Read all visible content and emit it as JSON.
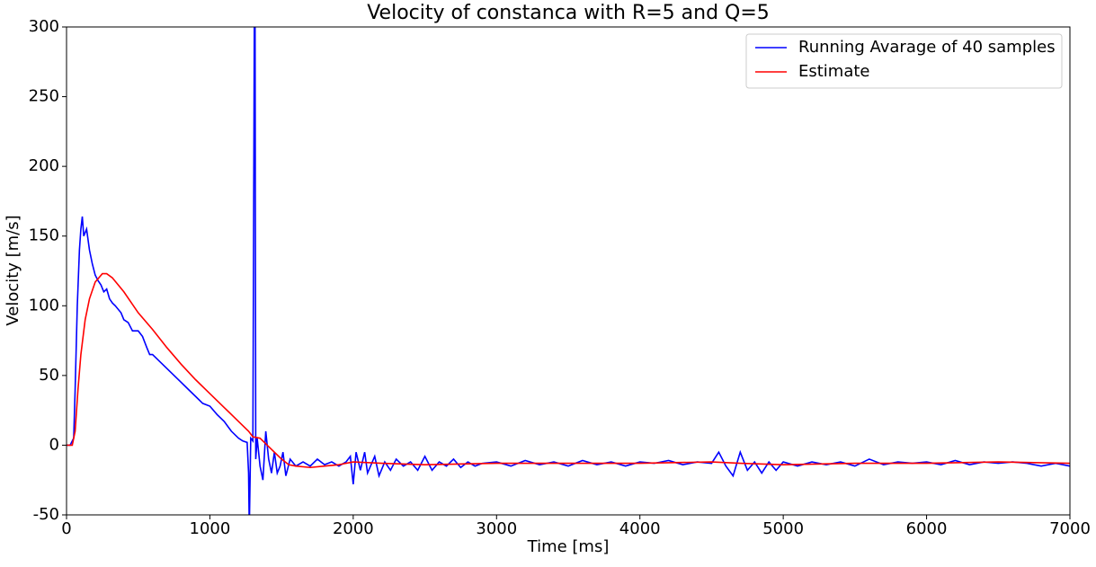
{
  "chart_data": {
    "type": "line",
    "title": "Velocity of constanca with R=5 and Q=5",
    "x_label": "Time [ms]",
    "y_label": "Velocity [m/s]",
    "xlim": [
      0,
      7000
    ],
    "xticks": [
      0,
      1000,
      2000,
      3000,
      4000,
      5000,
      6000,
      7000
    ],
    "ylim": [
      -50,
      300
    ],
    "yticks": [
      -50,
      0,
      50,
      100,
      150,
      200,
      250,
      300
    ],
    "legend": "upper right",
    "series": [
      {
        "name": "Running Avarage of 40 samples",
        "color": "#0000ff",
        "x": [
          0,
          25,
          50,
          60,
          75,
          90,
          100,
          110,
          120,
          140,
          160,
          180,
          200,
          220,
          240,
          260,
          280,
          300,
          320,
          340,
          380,
          400,
          430,
          460,
          500,
          530,
          560,
          580,
          600,
          650,
          700,
          750,
          800,
          850,
          900,
          950,
          1000,
          1050,
          1100,
          1150,
          1200,
          1230,
          1260,
          1270,
          1275,
          1285,
          1300,
          1310,
          1315,
          1320,
          1330,
          1350,
          1370,
          1390,
          1410,
          1430,
          1450,
          1470,
          1490,
          1510,
          1530,
          1560,
          1600,
          1650,
          1700,
          1750,
          1800,
          1850,
          1900,
          1950,
          1980,
          2000,
          2020,
          2050,
          2080,
          2100,
          2150,
          2180,
          2220,
          2260,
          2300,
          2350,
          2400,
          2450,
          2500,
          2550,
          2600,
          2650,
          2700,
          2750,
          2800,
          2850,
          2900,
          3000,
          3100,
          3200,
          3300,
          3400,
          3500,
          3600,
          3700,
          3800,
          3900,
          4000,
          4100,
          4200,
          4300,
          4400,
          4500,
          4550,
          4600,
          4650,
          4700,
          4750,
          4800,
          4850,
          4900,
          4950,
          5000,
          5100,
          5200,
          5300,
          5400,
          5500,
          5600,
          5700,
          5800,
          5900,
          6000,
          6100,
          6200,
          6300,
          6400,
          6500,
          6600,
          6700,
          6800,
          6900,
          7000
        ],
        "values": [
          0,
          0,
          5,
          40,
          100,
          140,
          155,
          164,
          150,
          155,
          140,
          130,
          122,
          118,
          115,
          110,
          112,
          105,
          102,
          100,
          95,
          90,
          88,
          82,
          82,
          78,
          70,
          65,
          65,
          60,
          55,
          50,
          45,
          40,
          35,
          30,
          28,
          22,
          17,
          10,
          5,
          3,
          2,
          -20,
          -60,
          5,
          3,
          300,
          320,
          -10,
          5,
          -15,
          -25,
          10,
          -10,
          -20,
          -5,
          -20,
          -15,
          -5,
          -22,
          -10,
          -15,
          -12,
          -15,
          -10,
          -14,
          -12,
          -15,
          -12,
          -8,
          -28,
          -5,
          -18,
          -5,
          -20,
          -8,
          -22,
          -12,
          -18,
          -10,
          -15,
          -12,
          -18,
          -8,
          -18,
          -12,
          -15,
          -10,
          -16,
          -12,
          -15,
          -13,
          -12,
          -15,
          -11,
          -14,
          -12,
          -15,
          -11,
          -14,
          -12,
          -15,
          -12,
          -13,
          -11,
          -14,
          -12,
          -13,
          -5,
          -15,
          -22,
          -5,
          -18,
          -12,
          -20,
          -12,
          -18,
          -12,
          -15,
          -12,
          -14,
          -12,
          -15,
          -10,
          -14,
          -12,
          -13,
          -12,
          -14,
          -11,
          -14,
          -12,
          -13,
          -12,
          -13,
          -15,
          -13,
          -15
        ]
      },
      {
        "name": "Estimate",
        "color": "#ff0000",
        "x": [
          0,
          40,
          60,
          80,
          100,
          130,
          160,
          200,
          250,
          280,
          320,
          400,
          500,
          600,
          700,
          800,
          900,
          1000,
          1100,
          1200,
          1270,
          1300,
          1350,
          1400,
          1450,
          1500,
          1550,
          1600,
          1700,
          1800,
          1900,
          2000,
          2200,
          2500,
          3000,
          3500,
          4000,
          4500,
          4700,
          5000,
          5500,
          6000,
          6500,
          7000
        ],
        "values": [
          0,
          0,
          10,
          40,
          65,
          90,
          105,
          117,
          123,
          123,
          120,
          110,
          95,
          83,
          70,
          58,
          47,
          37,
          27,
          17,
          10,
          6,
          5,
          0,
          -5,
          -10,
          -14,
          -15,
          -16,
          -15,
          -14,
          -12,
          -13,
          -14,
          -13,
          -13,
          -13,
          -12,
          -13,
          -14,
          -13,
          -13,
          -12,
          -13
        ]
      }
    ]
  }
}
